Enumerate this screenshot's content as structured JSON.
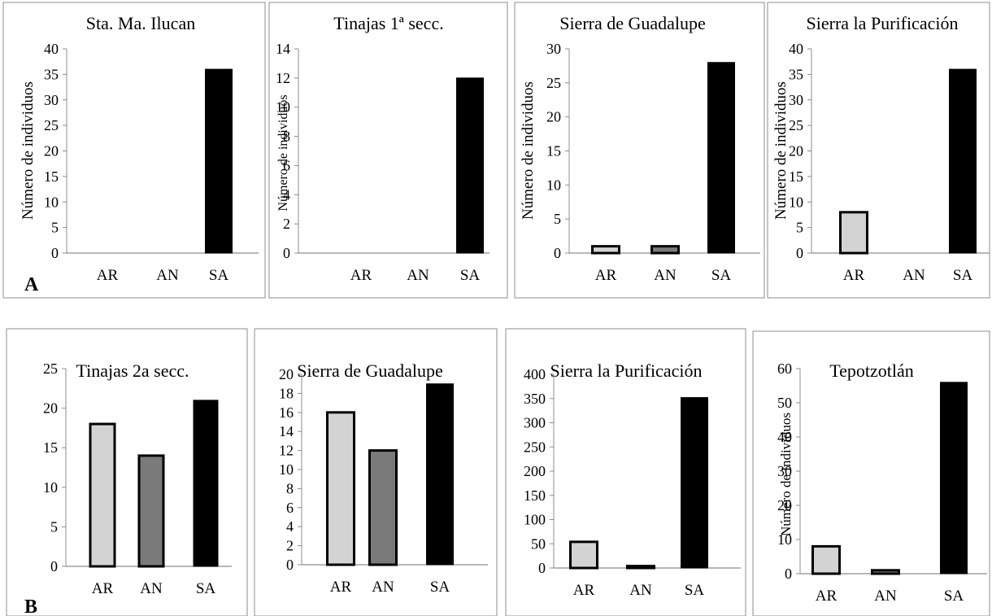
{
  "figure": {
    "panel_labels": [
      "A",
      "B"
    ]
  },
  "colors": {
    "AR": "#d3d3d3",
    "AN": "#7a7a7a",
    "SA": "#000000"
  },
  "chart_data": [
    {
      "type": "bar",
      "title": "Sta. Ma. Ilucan",
      "ylabel": "Número de individuos",
      "categories": [
        "AR",
        "AN",
        "SA"
      ],
      "values": [
        0,
        0,
        36
      ],
      "ylim": [
        0,
        40
      ],
      "yticks": [
        0,
        5,
        10,
        15,
        20,
        25,
        30,
        35,
        40
      ]
    },
    {
      "type": "bar",
      "title": "Tinajas 1ª secc.",
      "ylabel": "Número de individuos",
      "categories": [
        "AR",
        "AN",
        "SA"
      ],
      "values": [
        0,
        0,
        12
      ],
      "ylim": [
        0,
        14
      ],
      "yticks": [
        0,
        2,
        4,
        6,
        8,
        10,
        12,
        14
      ]
    },
    {
      "type": "bar",
      "title": "Sierra de Guadalupe",
      "ylabel": "Número de individuos",
      "categories": [
        "AR",
        "AN",
        "SA"
      ],
      "values": [
        1,
        1,
        28
      ],
      "ylim": [
        0,
        30
      ],
      "yticks": [
        0,
        5,
        10,
        15,
        20,
        25,
        30
      ]
    },
    {
      "type": "bar",
      "title": "Sierra la Purificación",
      "ylabel": "Número de individuos",
      "categories": [
        "AR",
        "AN",
        "SA"
      ],
      "values": [
        8,
        0,
        36
      ],
      "ylim": [
        0,
        40
      ],
      "yticks": [
        0,
        5,
        10,
        15,
        20,
        25,
        30,
        35,
        40
      ]
    },
    {
      "type": "bar",
      "title": "Tinajas 2a secc.",
      "ylabel": "",
      "categories": [
        "AR",
        "AN",
        "SA"
      ],
      "values": [
        18,
        14,
        21
      ],
      "ylim": [
        0,
        25
      ],
      "yticks": [
        0,
        5,
        10,
        15,
        20,
        25
      ]
    },
    {
      "type": "bar",
      "title": "Sierra de Guadalupe",
      "ylabel": "",
      "categories": [
        "AR",
        "AN",
        "SA"
      ],
      "values": [
        16,
        12,
        19
      ],
      "ylim": [
        0,
        20
      ],
      "yticks": [
        0,
        2,
        4,
        6,
        8,
        10,
        12,
        14,
        16,
        18,
        20
      ]
    },
    {
      "type": "bar",
      "title": "Sierra la Purificación",
      "ylabel": "",
      "categories": [
        "AR",
        "AN",
        "SA"
      ],
      "values": [
        54,
        4,
        352
      ],
      "ylim": [
        0,
        400
      ],
      "yticks": [
        0,
        50,
        100,
        150,
        200,
        250,
        300,
        350,
        400
      ]
    },
    {
      "type": "bar",
      "title": "Tepotzotlán",
      "ylabel": "Número de individuos",
      "categories": [
        "AR",
        "AN",
        "SA"
      ],
      "values": [
        8,
        1,
        56
      ],
      "ylim": [
        0,
        60
      ],
      "yticks": [
        0,
        10,
        20,
        30,
        40,
        50,
        60
      ]
    }
  ]
}
